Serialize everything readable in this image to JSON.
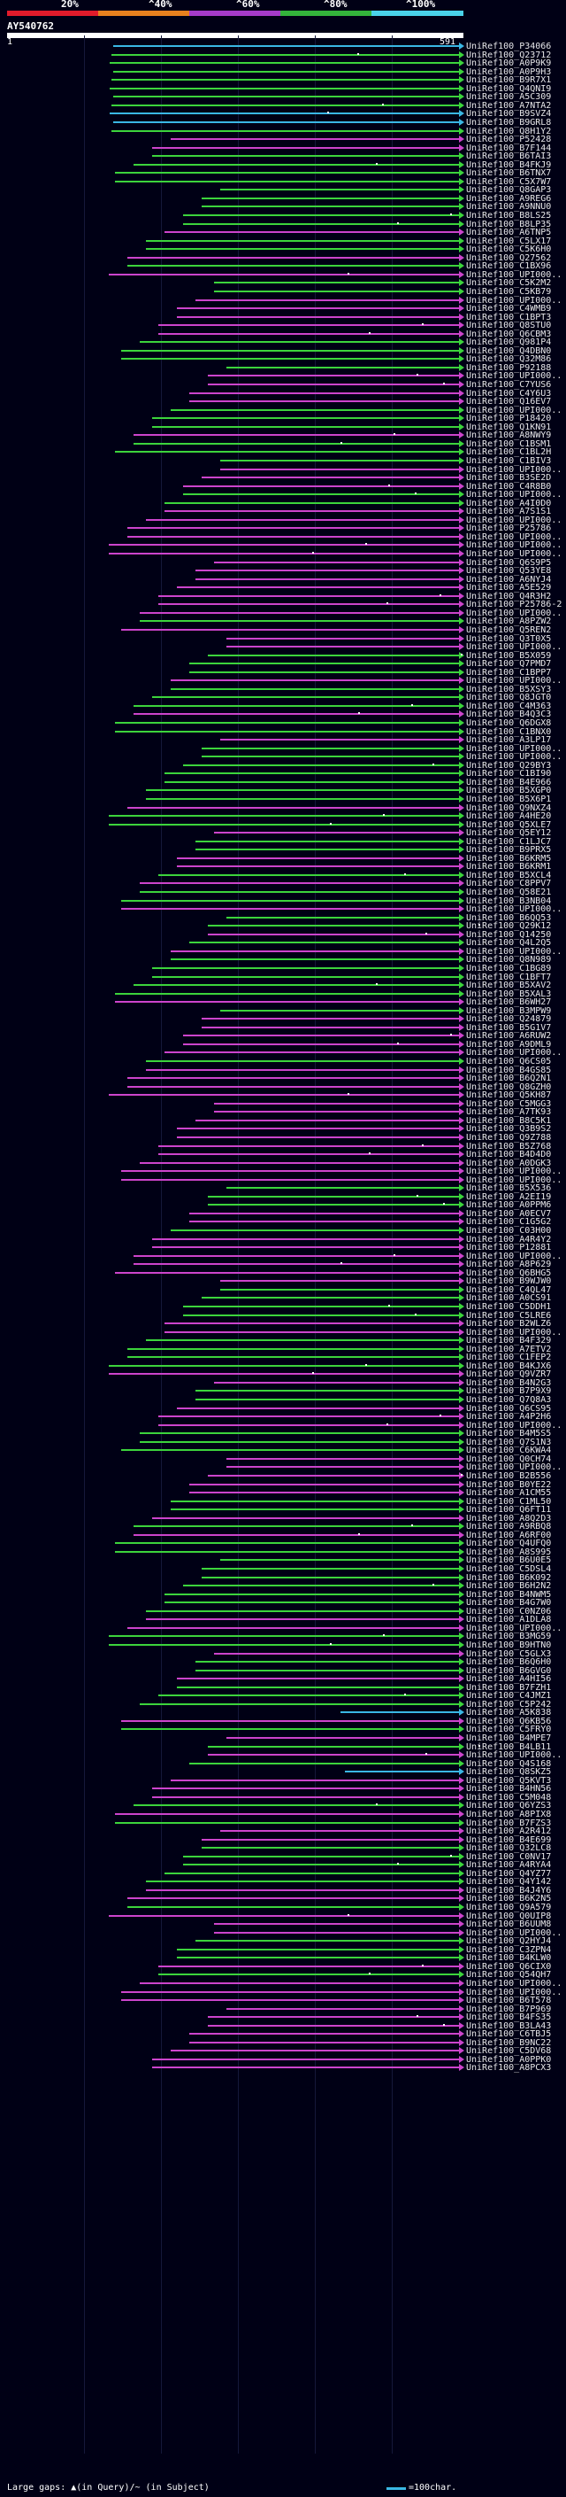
{
  "header": {
    "percent_labels": [
      "20%",
      "^40%",
      "^60%",
      "^80%",
      "^100%"
    ],
    "segment_colors": [
      "#e11b2b",
      "#e8811e",
      "#a53bc9",
      "#34b43b",
      "#4ad2e9"
    ]
  },
  "query": {
    "id": "AY540762",
    "start": "1",
    "end": "591"
  },
  "legend": {
    "gaps_text": "Large gaps: ▲(in Query)/~ (in Subject)",
    "scale_text": "=100char.",
    "colors": {
      "green": "#3cd43c",
      "magenta": "#cc44cc",
      "cyan": "#3ab7e4",
      "dot": "#ffffff"
    }
  },
  "hits": [
    {
      "id": "UniRef100_P34066",
      "color": "cyan"
    },
    {
      "id": "UniRef100_Q23712",
      "color": "green"
    },
    {
      "id": "UniRef100_A0P9K9",
      "color": "green"
    },
    {
      "id": "UniRef100_A0P9H3",
      "color": "green"
    },
    {
      "id": "UniRef100_B9R7X1",
      "color": "green"
    },
    {
      "id": "UniRef100_Q4QNI9",
      "color": "green"
    },
    {
      "id": "UniRef100_A5C309",
      "color": "green"
    },
    {
      "id": "UniRef100_A7NTA2",
      "color": "green"
    },
    {
      "id": "UniRef100_B9SVZ4",
      "color": "cyan"
    },
    {
      "id": "UniRef100_B9GRL8",
      "color": "cyan"
    },
    {
      "id": "UniRef100_Q8H1Y2",
      "color": "green"
    },
    {
      "id": "UniRef100_P52428",
      "color": "magenta"
    },
    {
      "id": "UniRef100_B7F144",
      "color": "magenta"
    },
    {
      "id": "UniRef100_B6TAI3",
      "color": "green"
    },
    {
      "id": "UniRef100_B4FKJ9",
      "color": "green"
    },
    {
      "id": "UniRef100_B6TNX7",
      "color": "green"
    },
    {
      "id": "UniRef100_C5X7W7",
      "color": "green"
    },
    {
      "id": "UniRef100_Q8GAP3",
      "color": "green"
    },
    {
      "id": "UniRef100_A9REG6",
      "color": "green"
    },
    {
      "id": "UniRef100_A9NNU0",
      "color": "green"
    },
    {
      "id": "UniRef100_B8LS25",
      "color": "green"
    },
    {
      "id": "UniRef100_B8LP35",
      "color": "green"
    },
    {
      "id": "UniRef100_A6TNP5",
      "color": "magenta"
    },
    {
      "id": "UniRef100_C5LX17",
      "color": "green"
    },
    {
      "id": "UniRef100_C5K6H0",
      "color": "green"
    },
    {
      "id": "UniRef100_Q27562",
      "color": "magenta"
    },
    {
      "id": "UniRef100_C1BX96",
      "color": "green"
    },
    {
      "id": "UniRef100_UPI000..",
      "color": "magenta"
    },
    {
      "id": "UniRef100_C5K2M2",
      "color": "green"
    },
    {
      "id": "UniRef100_C5KB79",
      "color": "green"
    },
    {
      "id": "UniRef100_UPI000..",
      "color": "magenta"
    },
    {
      "id": "UniRef100_C4WMB9",
      "color": "magenta"
    },
    {
      "id": "UniRef100_C1BPT3",
      "color": "magenta"
    },
    {
      "id": "UniRef100_Q8STU0",
      "color": "magenta"
    },
    {
      "id": "UniRef100_Q6CBM3",
      "color": "magenta"
    },
    {
      "id": "UniRef100_Q981P4",
      "color": "green"
    },
    {
      "id": "UniRef100_Q4DBN0",
      "color": "green"
    },
    {
      "id": "UniRef100_Q32M86",
      "color": "green"
    },
    {
      "id": "UniRef100_P92188",
      "color": "green"
    },
    {
      "id": "UniRef100_UPI000..",
      "color": "magenta"
    },
    {
      "id": "UniRef100_C7YUS6",
      "color": "magenta"
    },
    {
      "id": "UniRef100_C4Y6U3",
      "color": "magenta"
    },
    {
      "id": "UniRef100_Q16EV7",
      "color": "magenta"
    },
    {
      "id": "UniRef100_UPI000..",
      "color": "green"
    },
    {
      "id": "UniRef100_P18420",
      "color": "green"
    },
    {
      "id": "UniRef100_Q1KN91",
      "color": "green"
    },
    {
      "id": "UniRef100_A8NWY9",
      "color": "magenta"
    },
    {
      "id": "UniRef100_C1BSM1",
      "color": "green"
    },
    {
      "id": "UniRef100_C1BL2H",
      "color": "green"
    },
    {
      "id": "UniRef100_C1BIV3",
      "color": "green"
    },
    {
      "id": "UniRef100_UPI000..",
      "color": "magenta"
    },
    {
      "id": "UniRef100_B3SE2D",
      "color": "magenta"
    },
    {
      "id": "UniRef100_C4R8B0",
      "color": "magenta"
    },
    {
      "id": "UniRef100_UPI000..",
      "color": "green"
    },
    {
      "id": "UniRef100_A4I0D0",
      "color": "green"
    },
    {
      "id": "UniRef100_A7S1S1",
      "color": "magenta"
    },
    {
      "id": "UniRef100_UPI000..",
      "color": "magenta"
    },
    {
      "id": "UniRef100_P25786",
      "color": "magenta"
    },
    {
      "id": "UniRef100_UPI000..",
      "color": "magenta"
    },
    {
      "id": "UniRef100_UPI000..",
      "color": "magenta"
    },
    {
      "id": "UniRef100_UPI000..",
      "color": "magenta"
    },
    {
      "id": "UniRef100_Q6S9P5",
      "color": "magenta"
    },
    {
      "id": "UniRef100_Q53YE8",
      "color": "magenta"
    },
    {
      "id": "UniRef100_A6NYJ4",
      "color": "magenta"
    },
    {
      "id": "UniRef100_A5E529",
      "color": "magenta"
    },
    {
      "id": "UniRef100_Q4R3H2",
      "color": "magenta"
    },
    {
      "id": "UniRef100_P25786-2",
      "color": "magenta"
    },
    {
      "id": "UniRef100_UPI000..",
      "color": "magenta"
    },
    {
      "id": "UniRef100_A8PZW2",
      "color": "green"
    },
    {
      "id": "UniRef100_Q5REN2",
      "color": "magenta"
    },
    {
      "id": "UniRef100_Q3T0X5",
      "color": "magenta"
    },
    {
      "id": "UniRef100_UPI000..",
      "color": "magenta"
    },
    {
      "id": "UniRef100_B5X059",
      "color": "green"
    },
    {
      "id": "UniRef100_Q7PMD7",
      "color": "green"
    },
    {
      "id": "UniRef100_C1BPP7",
      "color": "green"
    },
    {
      "id": "UniRef100_UPI000..",
      "color": "magenta"
    },
    {
      "id": "UniRef100_B5XSY3",
      "color": "green"
    },
    {
      "id": "UniRef100_Q8JGT0",
      "color": "green"
    },
    {
      "id": "UniRef100_C4M363",
      "color": "green"
    },
    {
      "id": "UniRef100_B4Q3C3",
      "color": "magenta"
    },
    {
      "id": "UniRef100_Q6DGX8",
      "color": "green"
    },
    {
      "id": "UniRef100_C1BNX0",
      "color": "green"
    },
    {
      "id": "UniRef100_A3LP17",
      "color": "magenta"
    },
    {
      "id": "UniRef100_UPI000..",
      "color": "green"
    },
    {
      "id": "UniRef100_UPI000..",
      "color": "green"
    },
    {
      "id": "UniRef100_Q29BY3",
      "color": "green"
    },
    {
      "id": "UniRef100_C1BI90",
      "color": "green"
    },
    {
      "id": "UniRef100_B4E966",
      "color": "green"
    },
    {
      "id": "UniRef100_B5XGP0",
      "color": "green"
    },
    {
      "id": "UniRef100_B5X6P1",
      "color": "green"
    },
    {
      "id": "UniRef100_Q9NXZ4",
      "color": "magenta"
    },
    {
      "id": "UniRef100_A4HE20",
      "color": "green"
    },
    {
      "id": "UniRef100_Q5XLE7",
      "color": "green"
    },
    {
      "id": "UniRef100_Q5EY12",
      "color": "magenta"
    },
    {
      "id": "UniRef100_C1LJC7",
      "color": "green"
    },
    {
      "id": "UniRef100_B9PRX5",
      "color": "green"
    },
    {
      "id": "UniRef100_B6KRM5",
      "color": "magenta"
    },
    {
      "id": "UniRef100_B6KRM1",
      "color": "magenta"
    },
    {
      "id": "UniRef100_B5XCL4",
      "color": "green"
    },
    {
      "id": "UniRef100_C8PPV7",
      "color": "magenta"
    },
    {
      "id": "UniRef100_Q58E21",
      "color": "green"
    },
    {
      "id": "UniRef100_B3NB04",
      "color": "green"
    },
    {
      "id": "UniRef100_UPI000..",
      "color": "magenta"
    },
    {
      "id": "UniRef100_B6QQ53",
      "color": "green"
    },
    {
      "id": "UniRef100_Q29K12",
      "color": "green"
    },
    {
      "id": "UniRef100_Q14250",
      "color": "magenta"
    },
    {
      "id": "UniRef100_Q4L2Q5",
      "color": "green"
    },
    {
      "id": "UniRef100_UPI000..",
      "color": "magenta"
    },
    {
      "id": "UniRef100_Q8N989",
      "color": "green"
    },
    {
      "id": "UniRef100_C1BG89",
      "color": "green"
    },
    {
      "id": "UniRef100_C1BFT7",
      "color": "green"
    },
    {
      "id": "UniRef100_B5XAV2",
      "color": "green"
    },
    {
      "id": "UniRef100_B5XAL3",
      "color": "green"
    },
    {
      "id": "UniRef100_B6WH27",
      "color": "magenta"
    },
    {
      "id": "UniRef100_B3MPW9",
      "color": "green"
    },
    {
      "id": "UniRef100_Q24879",
      "color": "magenta"
    },
    {
      "id": "UniRef100_B5G1V7",
      "color": "magenta"
    },
    {
      "id": "UniRef100_A6RUW2",
      "color": "magenta"
    },
    {
      "id": "UniRef100_A9DML9",
      "color": "magenta"
    },
    {
      "id": "UniRef100_UPI000..",
      "color": "magenta"
    },
    {
      "id": "UniRef100_Q6CS05",
      "color": "green"
    },
    {
      "id": "UniRef100_B4GS85",
      "color": "magenta"
    },
    {
      "id": "UniRef100_B6Q2N1",
      "color": "magenta"
    },
    {
      "id": "UniRef100_Q8GZH0",
      "color": "magenta"
    },
    {
      "id": "UniRef100_Q5KH87",
      "color": "magenta"
    },
    {
      "id": "UniRef100_C5MGG3",
      "color": "magenta"
    },
    {
      "id": "UniRef100_A7TK93",
      "color": "magenta"
    },
    {
      "id": "UniRef100_B8C5K1",
      "color": "magenta"
    },
    {
      "id": "UniRef100_Q3B9S2",
      "color": "magenta"
    },
    {
      "id": "UniRef100_Q9Z788",
      "color": "magenta"
    },
    {
      "id": "UniRef100_B5Z768",
      "color": "magenta"
    },
    {
      "id": "UniRef100_B4D4D0",
      "color": "magenta"
    },
    {
      "id": "UniRef100_A0DGK3",
      "color": "magenta"
    },
    {
      "id": "UniRef100_UPI000..",
      "color": "magenta"
    },
    {
      "id": "UniRef100_UPI000..",
      "color": "magenta"
    },
    {
      "id": "UniRef100_B5X536",
      "color": "green"
    },
    {
      "id": "UniRef100_A2EI19",
      "color": "green"
    },
    {
      "id": "UniRef100_A0PPM6",
      "color": "green"
    },
    {
      "id": "UniRef100_A0ECV7",
      "color": "magenta"
    },
    {
      "id": "UniRef100_C1G5G2",
      "color": "magenta"
    },
    {
      "id": "UniRef100_C03H00",
      "color": "green"
    },
    {
      "id": "UniRef100_A4R4Y2",
      "color": "magenta"
    },
    {
      "id": "UniRef100_P12881",
      "color": "magenta"
    },
    {
      "id": "UniRef100_UPI000..",
      "color": "magenta"
    },
    {
      "id": "UniRef100_A8P629",
      "color": "magenta"
    },
    {
      "id": "UniRef100_Q6BHG5",
      "color": "magenta"
    },
    {
      "id": "UniRef100_B9WJW0",
      "color": "magenta"
    },
    {
      "id": "UniRef100_C4QL47",
      "color": "green"
    },
    {
      "id": "UniRef100_A0CS91",
      "color": "green"
    },
    {
      "id": "UniRef100_C5DDH1",
      "color": "green"
    },
    {
      "id": "UniRef100_C5LRE6",
      "color": "green"
    },
    {
      "id": "UniRef100_B2WLZ6",
      "color": "magenta"
    },
    {
      "id": "UniRef100_UPI000..",
      "color": "magenta"
    },
    {
      "id": "UniRef100_B4F329",
      "color": "green"
    },
    {
      "id": "UniRef100_A7ETV2",
      "color": "green"
    },
    {
      "id": "UniRef100_C1FEP2",
      "color": "green"
    },
    {
      "id": "UniRef100_B4KJX6",
      "color": "green"
    },
    {
      "id": "UniRef100_Q9VZR7",
      "color": "magenta"
    },
    {
      "id": "UniRef100_B4N2G3",
      "color": "magenta"
    },
    {
      "id": "UniRef100_B7P9X9",
      "color": "green"
    },
    {
      "id": "UniRef100_Q7Q8A3",
      "color": "green"
    },
    {
      "id": "UniRef100_Q6CS95",
      "color": "magenta"
    },
    {
      "id": "UniRef100_A4P2H6",
      "color": "magenta"
    },
    {
      "id": "UniRef100_UPI000..",
      "color": "magenta"
    },
    {
      "id": "UniRef100_B4M5S5",
      "color": "green"
    },
    {
      "id": "UniRef100_Q7S1N3",
      "color": "green"
    },
    {
      "id": "UniRef100_C6KWA4",
      "color": "green"
    },
    {
      "id": "UniRef100_Q0CH74",
      "color": "magenta"
    },
    {
      "id": "UniRef100_UPI000..",
      "color": "magenta"
    },
    {
      "id": "UniRef100_B2B556",
      "color": "magenta"
    },
    {
      "id": "UniRef100_B0YE22",
      "color": "magenta"
    },
    {
      "id": "UniRef100_A1CM55",
      "color": "magenta"
    },
    {
      "id": "UniRef100_C1ML50",
      "color": "green"
    },
    {
      "id": "UniRef100_Q6FT11",
      "color": "green"
    },
    {
      "id": "UniRef100_A8Q2D3",
      "color": "magenta"
    },
    {
      "id": "UniRef100_A9RBQ8",
      "color": "green"
    },
    {
      "id": "UniRef100_A6RF00",
      "color": "magenta"
    },
    {
      "id": "UniRef100_Q4UFQ0",
      "color": "green"
    },
    {
      "id": "UniRef100_A8S995",
      "color": "green"
    },
    {
      "id": "UniRef100_B6U0E5",
      "color": "green"
    },
    {
      "id": "UniRef100_C5DSL4",
      "color": "green"
    },
    {
      "id": "UniRef100_B6K092",
      "color": "green"
    },
    {
      "id": "UniRef100_B6H2N2",
      "color": "green"
    },
    {
      "id": "UniRef100_B4NWM5",
      "color": "green"
    },
    {
      "id": "UniRef100_B4G7W0",
      "color": "green"
    },
    {
      "id": "UniRef100_C0NZ06",
      "color": "green"
    },
    {
      "id": "UniRef100_A1DLA8",
      "color": "magenta"
    },
    {
      "id": "UniRef100_UPI000..",
      "color": "magenta"
    },
    {
      "id": "UniRef100_B3MG59",
      "color": "green"
    },
    {
      "id": "UniRef100_B9HTN0",
      "color": "green"
    },
    {
      "id": "UniRef100_C5GLX3",
      "color": "magenta"
    },
    {
      "id": "UniRef100_B6Q6H0",
      "color": "green"
    },
    {
      "id": "UniRef100_B6GVG0",
      "color": "green"
    },
    {
      "id": "UniRef100_A4HI56",
      "color": "magenta"
    },
    {
      "id": "UniRef100_B7FZH1",
      "color": "green"
    },
    {
      "id": "UniRef100_C4JMZ1",
      "color": "green"
    },
    {
      "id": "UniRef100_C5P242",
      "color": "green"
    },
    {
      "id": "UniRef100_A5K838",
      "color": "cyan"
    },
    {
      "id": "UniRef100_Q6KB56",
      "color": "magenta"
    },
    {
      "id": "UniRef100_C5FRY0",
      "color": "green"
    },
    {
      "id": "UniRef100_B4MPE7",
      "color": "magenta"
    },
    {
      "id": "UniRef100_B4LB11",
      "color": "green"
    },
    {
      "id": "UniRef100_UPI000..",
      "color": "magenta"
    },
    {
      "id": "UniRef100_Q4S168",
      "color": "green"
    },
    {
      "id": "UniRef100_Q8SKZ5",
      "color": "cyan"
    },
    {
      "id": "UniRef100_Q5KVT3",
      "color": "magenta"
    },
    {
      "id": "UniRef100_B4HN56",
      "color": "magenta"
    },
    {
      "id": "UniRef100_C5M048",
      "color": "magenta"
    },
    {
      "id": "UniRef100_Q6YZS3",
      "color": "green"
    },
    {
      "id": "UniRef100_A8PIX8",
      "color": "magenta"
    },
    {
      "id": "UniRef100_B7FZS3",
      "color": "green"
    },
    {
      "id": "UniRef100_A2R412",
      "color": "magenta"
    },
    {
      "id": "UniRef100_B4E699",
      "color": "magenta"
    },
    {
      "id": "UniRef100_Q32LC8",
      "color": "green"
    },
    {
      "id": "UniRef100_C0NV17",
      "color": "green"
    },
    {
      "id": "UniRef100_A4RYA4",
      "color": "green"
    },
    {
      "id": "UniRef100_Q4YZ77",
      "color": "green"
    },
    {
      "id": "UniRef100_Q4Y142",
      "color": "green"
    },
    {
      "id": "UniRef100_B4J4Y6",
      "color": "magenta"
    },
    {
      "id": "UniRef100_B6K2N5",
      "color": "magenta"
    },
    {
      "id": "UniRef100_Q9A579",
      "color": "green"
    },
    {
      "id": "UniRef100_Q0UIP8",
      "color": "magenta"
    },
    {
      "id": "UniRef100_B6UUM8",
      "color": "magenta"
    },
    {
      "id": "UniRef100_UPI000..",
      "color": "magenta"
    },
    {
      "id": "UniRef100_Q2HYJ4",
      "color": "green"
    },
    {
      "id": "UniRef100_C3ZPN4",
      "color": "green"
    },
    {
      "id": "UniRef100_B4KLW0",
      "color": "green"
    },
    {
      "id": "UniRef100_Q6CIX0",
      "color": "magenta"
    },
    {
      "id": "UniRef100_Q54QH7",
      "color": "green"
    },
    {
      "id": "UniRef100_UPI000..",
      "color": "magenta"
    },
    {
      "id": "UniRef100_UPI000..",
      "color": "magenta"
    },
    {
      "id": "UniRef100_B6T578",
      "color": "magenta"
    },
    {
      "id": "UniRef100_B7P969",
      "color": "magenta"
    },
    {
      "id": "UniRef100_B4FS35",
      "color": "magenta"
    },
    {
      "id": "UniRef100_B3LA43",
      "color": "magenta"
    },
    {
      "id": "UniRef100_C6TBJ5",
      "color": "magenta"
    },
    {
      "id": "UniRef100_B9NC22",
      "color": "magenta"
    },
    {
      "id": "UniRef100_C5DV68",
      "color": "magenta"
    },
    {
      "id": "UniRef100_A0PPK0",
      "color": "magenta"
    },
    {
      "id": "UniRef100_A8PCX3",
      "color": "magenta"
    }
  ]
}
